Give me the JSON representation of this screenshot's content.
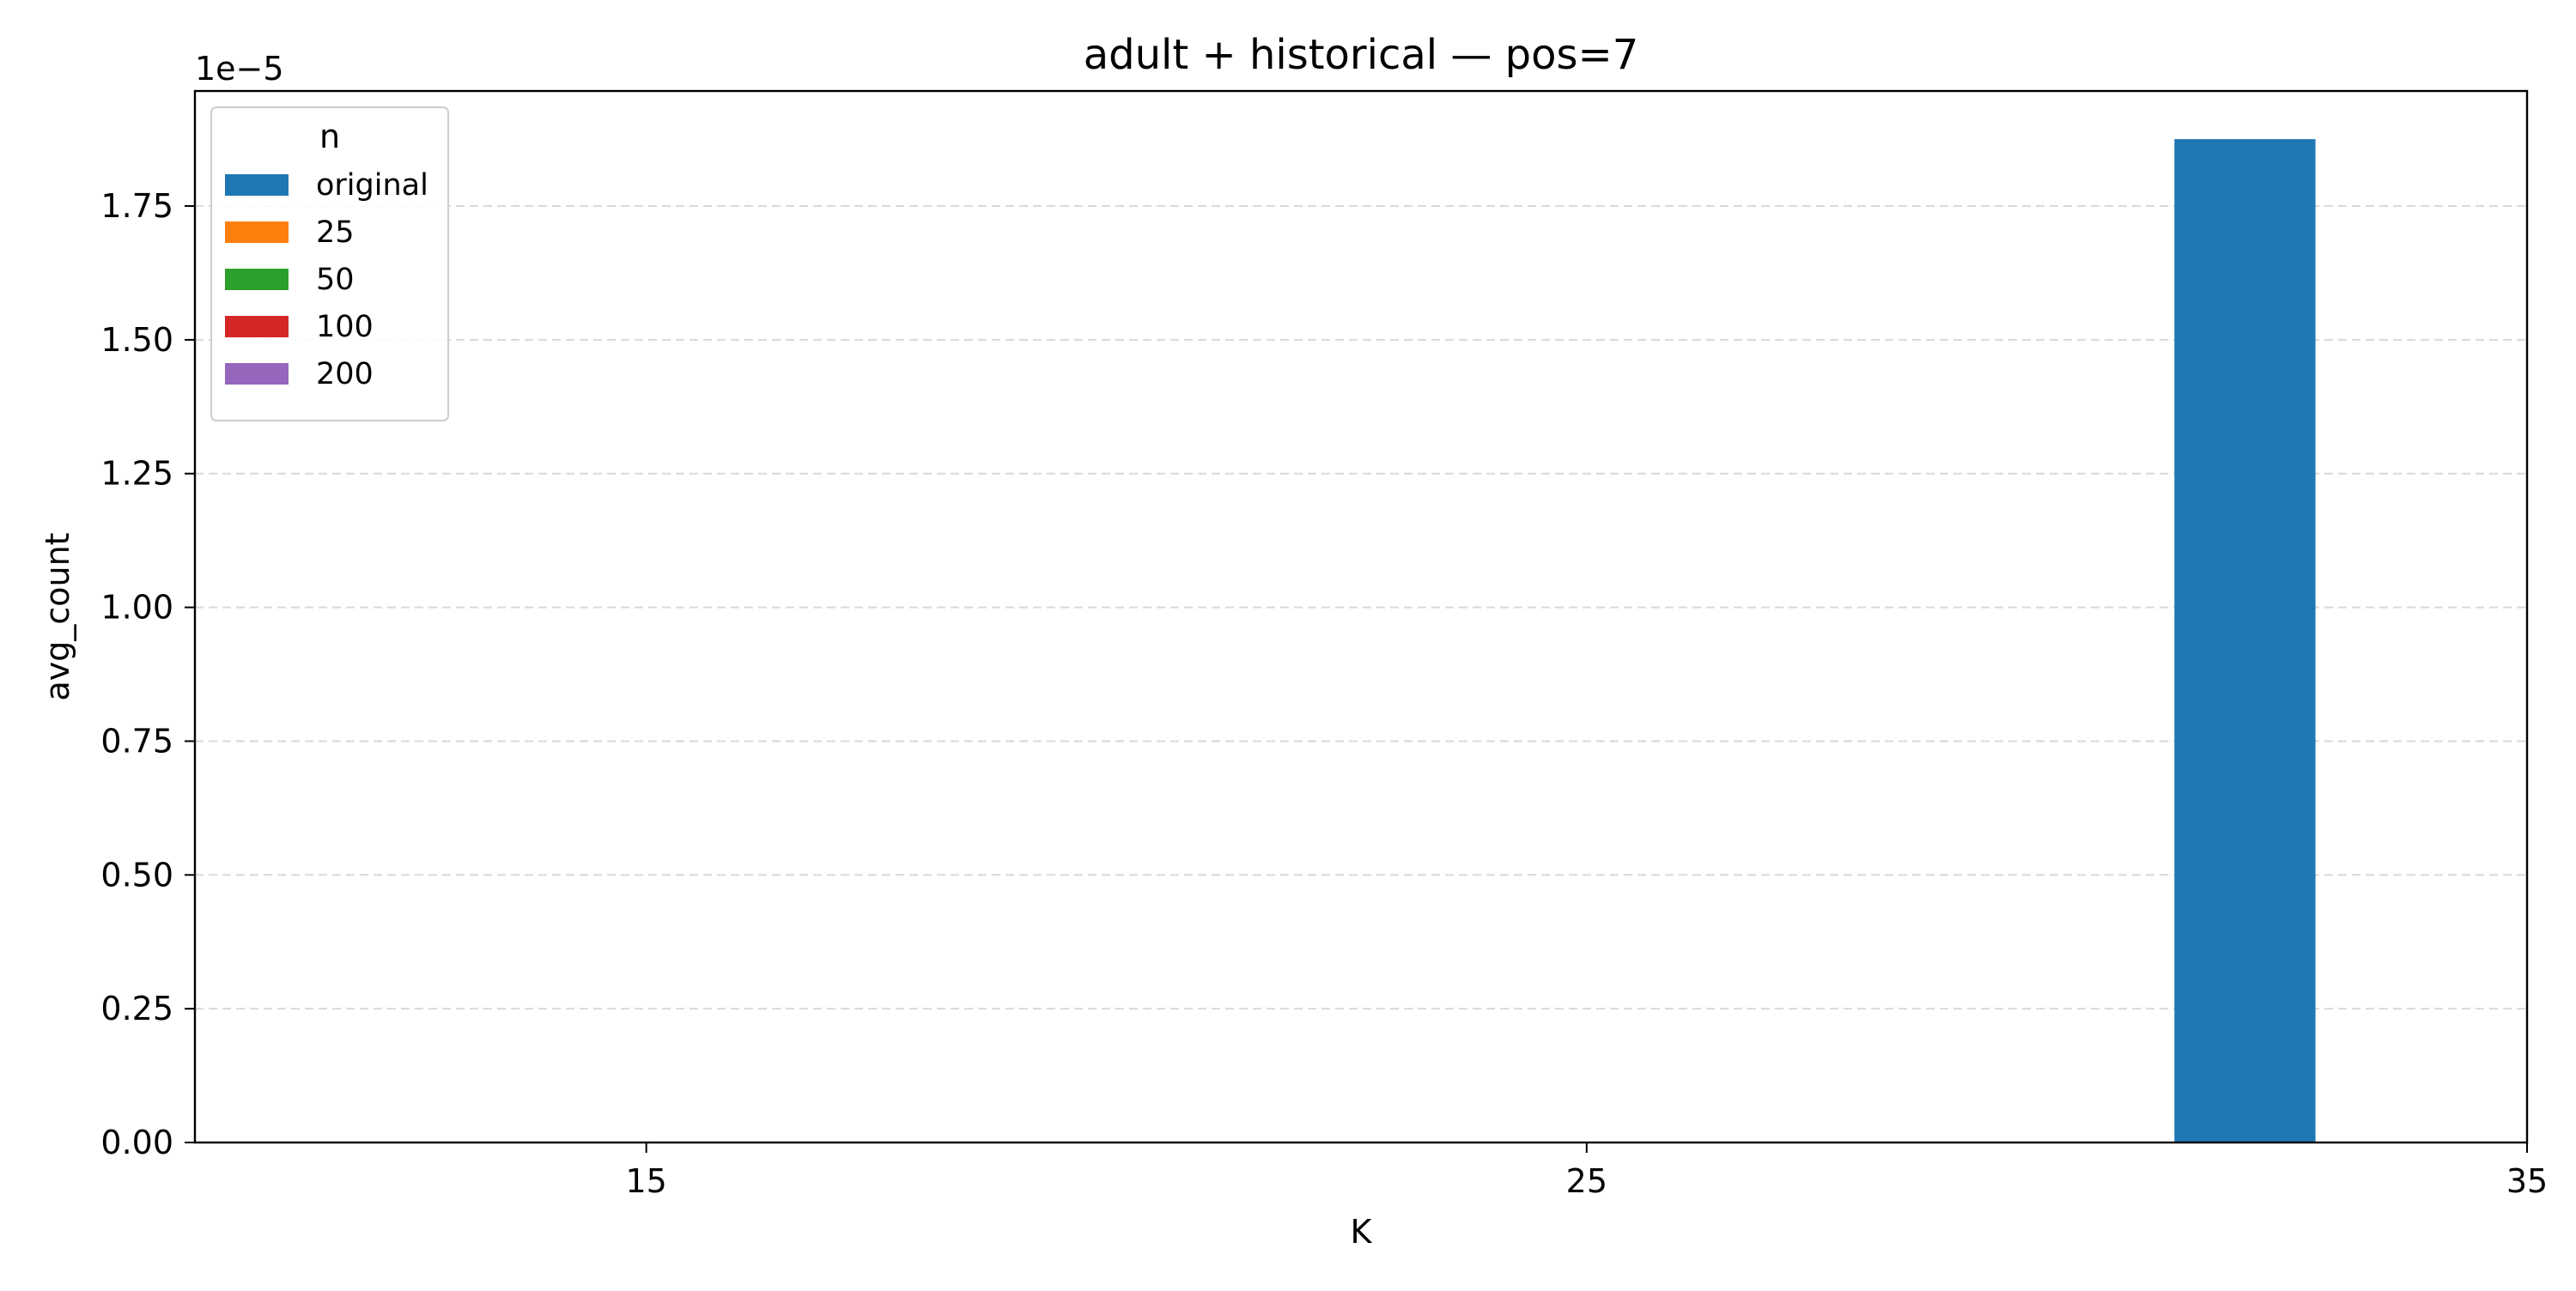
{
  "chart_data": {
    "type": "bar",
    "title": "adult + historical — pos=7",
    "xlabel": "K",
    "ylabel": "avg_count",
    "y_offset_label": "1e−5",
    "x_ticks": [
      {
        "value": 15,
        "label": "15"
      },
      {
        "value": 25,
        "label": "25"
      },
      {
        "value": 35,
        "label": "35"
      }
    ],
    "y_ticks": [
      {
        "value": 0.0,
        "label": "0.00"
      },
      {
        "value": 0.25,
        "label": "0.25"
      },
      {
        "value": 0.5,
        "label": "0.50"
      },
      {
        "value": 0.75,
        "label": "0.75"
      },
      {
        "value": 1.0,
        "label": "1.00"
      },
      {
        "value": 1.25,
        "label": "1.25"
      },
      {
        "value": 1.5,
        "label": "1.50"
      },
      {
        "value": 1.75,
        "label": "1.75"
      }
    ],
    "xlim": [
      10.2,
      35
    ],
    "ylim": [
      0,
      1.965
    ],
    "y_scale_multiplier": 1e-05,
    "grid": {
      "axis": "y",
      "style": "dashed"
    },
    "legend": {
      "title": "n",
      "placement": "top-left",
      "entries": [
        {
          "label": "original",
          "color": "#1f77b4"
        },
        {
          "label": "25",
          "color": "#ff7f0e"
        },
        {
          "label": "50",
          "color": "#2ca02c"
        },
        {
          "label": "100",
          "color": "#d62728"
        },
        {
          "label": "200",
          "color": "#9467bd"
        }
      ]
    },
    "series": [
      {
        "name": "original",
        "color": "#1f77b4",
        "points": [
          {
            "x": 32,
            "width": 1.5,
            "y": 1.875
          }
        ]
      },
      {
        "name": "25",
        "color": "#ff7f0e",
        "points": []
      },
      {
        "name": "50",
        "color": "#2ca02c",
        "points": []
      },
      {
        "name": "100",
        "color": "#d62728",
        "points": []
      },
      {
        "name": "200",
        "color": "#9467bd",
        "points": []
      }
    ]
  }
}
